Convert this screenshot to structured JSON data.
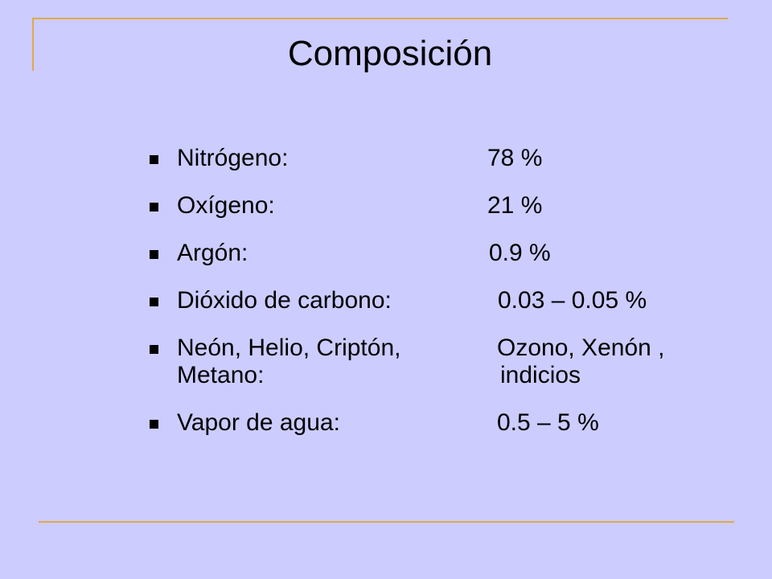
{
  "slide": {
    "title": "Composición",
    "items": [
      {
        "label": "Nitrógeno:",
        "value": "78 %"
      },
      {
        "label": "Oxígeno:",
        "value": "21 %"
      },
      {
        "label": "Argón:",
        "value": "0.9 %"
      },
      {
        "label": "Dióxido de carbono:",
        "value": "0.03 – 0.05 %"
      },
      {
        "label": "Neón, Helio, Criptón,",
        "value": "Ozono, Xenón ,",
        "label2": "Metano:",
        "value2": "indicios"
      },
      {
        "label": "Vapor de agua:",
        "value": "0.5 – 5 %"
      }
    ]
  },
  "colors": {
    "background": "#ccccff",
    "accent_rule": "#e0a94a",
    "text": "#000000"
  }
}
